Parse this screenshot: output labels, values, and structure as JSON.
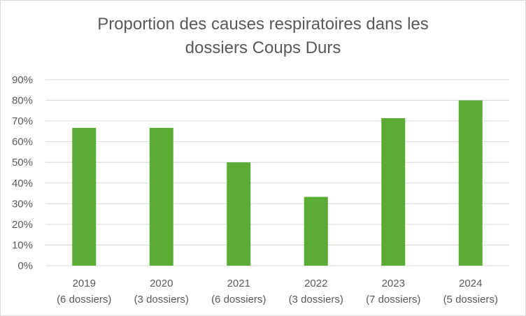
{
  "chart_data": {
    "type": "bar",
    "title_lines": [
      "Proportion des causes respiratoires dans les",
      "dossiers Coups Durs"
    ],
    "categories": [
      "2019",
      "2020",
      "2021",
      "2022",
      "2023",
      "2024"
    ],
    "category_sublabels": [
      "(6 dossiers)",
      "(3 dossiers)",
      "(6 dossiers)",
      "(3 dossiers)",
      "(7 dossiers)",
      "(5 dossiers)"
    ],
    "values": [
      0.667,
      0.667,
      0.5,
      0.333,
      0.714,
      0.8
    ],
    "ylim": [
      0,
      0.9
    ],
    "yticks": [
      "0%",
      "10%",
      "20%",
      "30%",
      "40%",
      "50%",
      "60%",
      "70%",
      "80%",
      "90%"
    ],
    "grid": true,
    "legend": "none",
    "bar_color": "#5aac34",
    "grid_color": "#d9d9d9",
    "text_color": "#595959"
  }
}
